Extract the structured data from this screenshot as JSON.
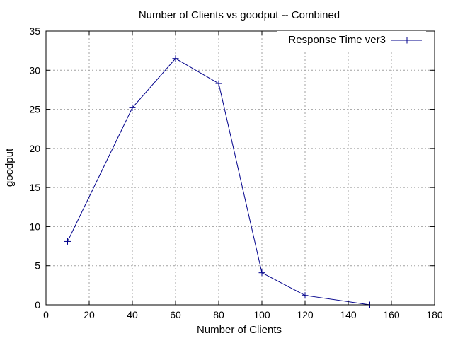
{
  "chart_data": {
    "type": "line",
    "title": "Number of Clients vs goodput -- Combined",
    "xlabel": "Number of Clients",
    "ylabel": "goodput",
    "xlim": [
      0,
      180
    ],
    "ylim": [
      0,
      35
    ],
    "xticks": [
      0,
      20,
      40,
      60,
      80,
      100,
      120,
      140,
      160,
      180
    ],
    "yticks": [
      0,
      5,
      10,
      15,
      20,
      25,
      30,
      35
    ],
    "grid": true,
    "legend_position": "top-right",
    "series": [
      {
        "name": "Response Time ver3",
        "color": "#00008b",
        "marker": "plus",
        "points": [
          {
            "x": 10,
            "y": 8.1
          },
          {
            "x": 40,
            "y": 25.2
          },
          {
            "x": 60,
            "y": 31.5
          },
          {
            "x": 80,
            "y": 28.3
          },
          {
            "x": 100,
            "y": 4.1
          },
          {
            "x": 120,
            "y": 1.2
          },
          {
            "x": 150,
            "y": 0
          }
        ]
      }
    ]
  }
}
